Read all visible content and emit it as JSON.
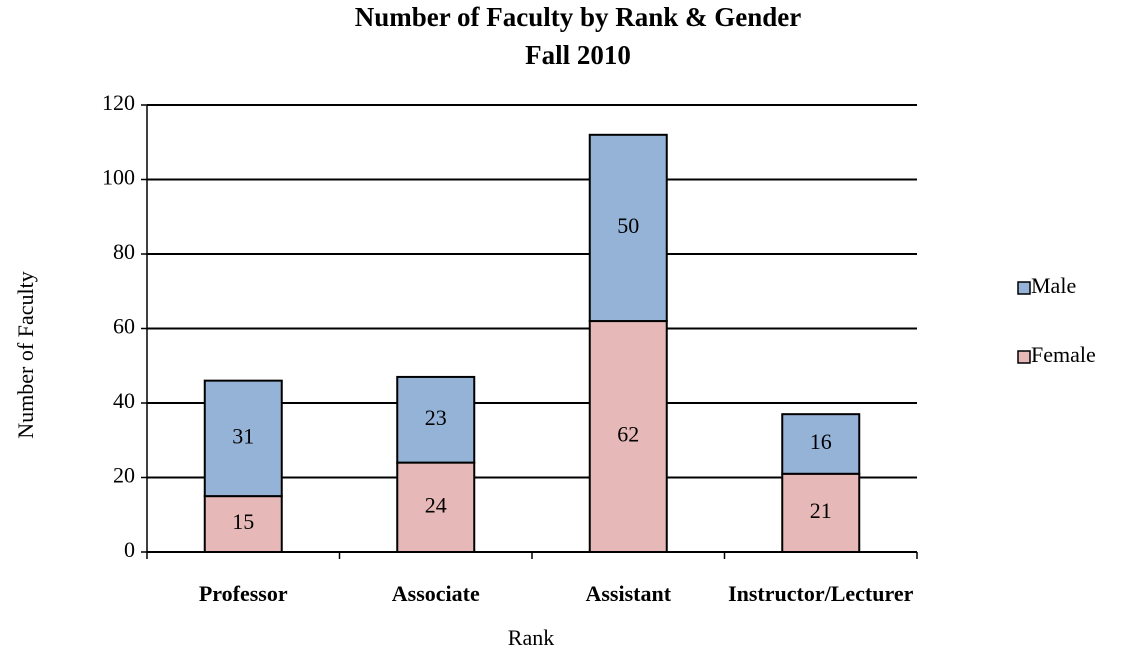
{
  "chart_data": {
    "type": "stacked_bar",
    "title": "Number of Faculty by Rank & Gender",
    "subtitle": "Fall 2010",
    "x_label": "Rank",
    "y_label": "Number of Faculty",
    "categories": [
      "Professor",
      "Associate",
      "Assistant",
      "Instructor/Lecturer"
    ],
    "series": [
      {
        "name": "Female",
        "color": "#e6b9b8",
        "values": [
          15,
          24,
          62,
          21
        ]
      },
      {
        "name": "Male",
        "color": "#95b3d7",
        "values": [
          31,
          23,
          50,
          16
        ]
      }
    ],
    "ylim": [
      0,
      120
    ],
    "yticks": [
      0,
      20,
      40,
      60,
      80,
      100,
      120
    ],
    "grid": true,
    "legend": "right"
  }
}
